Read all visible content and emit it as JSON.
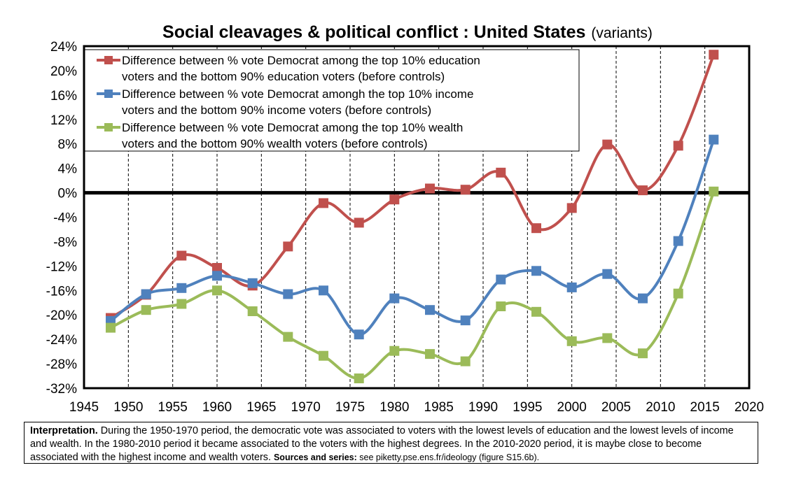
{
  "chart_data": {
    "type": "line",
    "title": "Social cleavages & political conflict : United States",
    "subtitle": "(variants)",
    "xlabel": "",
    "ylabel": "",
    "xlim": [
      1945,
      2020
    ],
    "ylim": [
      -32,
      24
    ],
    "xticks": [
      1945,
      1950,
      1955,
      1960,
      1965,
      1970,
      1975,
      1980,
      1985,
      1990,
      1995,
      2000,
      2005,
      2010,
      2015,
      2020
    ],
    "yticks": [
      -32,
      -28,
      -24,
      -20,
      -16,
      -12,
      -8,
      -4,
      0,
      4,
      8,
      12,
      16,
      20,
      24
    ],
    "ytick_labels": [
      "-32%",
      "-28%",
      "-24%",
      "-20%",
      "-16%",
      "-12%",
      "-8%",
      "-4%",
      "0%",
      "4%",
      "8%",
      "12%",
      "16%",
      "20%",
      "24%"
    ],
    "grid": {
      "vertical": "dashed",
      "horizontal": "none"
    },
    "zero_line": true,
    "legend_position": "top-left",
    "x": [
      1948,
      1952,
      1956,
      1960,
      1964,
      1968,
      1972,
      1976,
      1980,
      1984,
      1988,
      1992,
      1996,
      2000,
      2004,
      2008,
      2012,
      2016
    ],
    "series": [
      {
        "name": "Difference between % vote Democrat among the top 10% education voters and the bottom 90% education voters (before controls)",
        "legend_lines": [
          "Difference between % vote Democrat among the top 10% education",
          "voters and the bottom 90% education voters (before controls)"
        ],
        "color": "#c0504d",
        "values": [
          -20.5,
          -16.7,
          -10.3,
          -12.3,
          -15.2,
          -8.8,
          -1.7,
          -4.9,
          -1.1,
          0.7,
          0.5,
          3.3,
          -5.8,
          -2.5,
          7.9,
          0.4,
          7.7,
          22.6
        ]
      },
      {
        "name": "Difference between % vote Democrat amongh the top 10% income voters and the bottom 90% income voters (before controls)",
        "legend_lines": [
          "Difference between % vote Democrat amongh the top 10% income",
          "voters and the bottom 90% income voters (before controls)"
        ],
        "color": "#4f81bd",
        "values": [
          -21.0,
          -16.6,
          -15.6,
          -13.6,
          -14.8,
          -16.6,
          -16.0,
          -23.2,
          -17.3,
          -19.2,
          -20.9,
          -14.2,
          -12.8,
          -15.5,
          -13.3,
          -17.3,
          -7.9,
          8.7
        ]
      },
      {
        "name": "Difference between % vote Democrat among the top 10% wealth voters and the bottom 90% wealth voters (before controls)",
        "legend_lines": [
          "Difference between % vote Democrat among the top 10% wealth",
          "voters and the bottom 90% wealth voters (before controls)"
        ],
        "color": "#9bbb59",
        "values": [
          -22.1,
          -19.2,
          -18.2,
          -16.0,
          -19.4,
          -23.6,
          -26.7,
          -30.4,
          -25.9,
          -26.4,
          -27.6,
          -18.6,
          -19.5,
          -24.3,
          -23.8,
          -26.3,
          -16.5,
          0.2
        ]
      }
    ]
  },
  "note": {
    "label": "Interpretation.",
    "text": " During the 1950-1970 period, the democratic vote was associated to voters with the lowest levels of education and the lowest levels of income and wealth. In the 1980-2010 period it became associated to the voters with the highest degrees. In the 2010-2020 period, it is maybe close to become associated with the highest income and wealth voters. ",
    "sources_label": "Sources and series:",
    "sources_text": " see piketty.pse.ens.fr/ideology (figure S15.6b)."
  }
}
